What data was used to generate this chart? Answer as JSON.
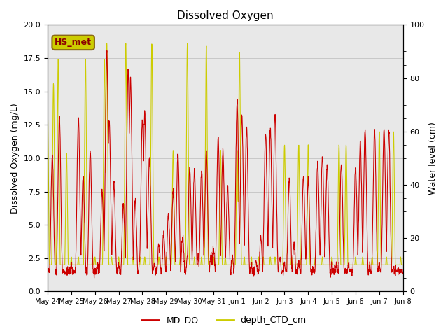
{
  "title": "Dissolved Oxygen",
  "ylabel_left": "Dissolved Oxygen (mg/L)",
  "ylabel_right": "Water level (cm)",
  "ylim_left": [
    0,
    20
  ],
  "ylim_right": [
    0,
    100
  ],
  "color_DO": "#CC0000",
  "color_CTD": "#CCCC00",
  "annotation_text": "HS_met",
  "annotation_bg": "#CCCC00",
  "annotation_border": "#8B6914",
  "legend_labels": [
    "MD_DO",
    "depth_CTD_cm"
  ],
  "bg_band_color": "#E8E8E8",
  "grid_color": "#C8C8C8",
  "xticklabels": [
    "May 24",
    "May 25",
    "May 26",
    "May 27",
    "May 28",
    "May 29",
    "May 30",
    "May 31",
    "Jun 1",
    "Jun 2",
    "Jun 3",
    "Jun 4",
    "Jun 5",
    "Jun 6",
    "Jun 7",
    "Jun 8"
  ],
  "xtick_positions": [
    0,
    1,
    2,
    3,
    4,
    5,
    6,
    7,
    8,
    9,
    10,
    11,
    12,
    13,
    14,
    15
  ],
  "xlim": [
    0,
    15
  ],
  "linewidth": 0.8
}
